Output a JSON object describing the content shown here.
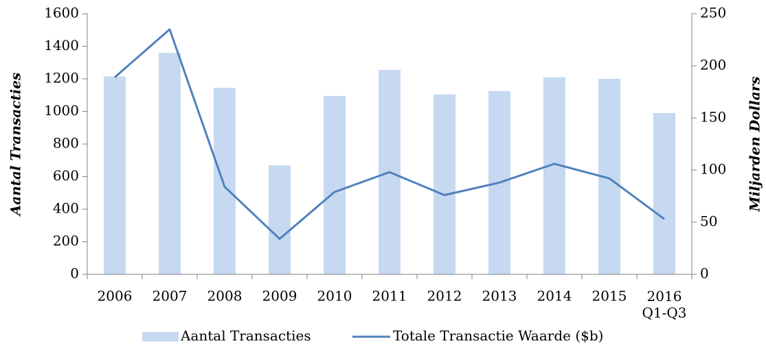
{
  "chart_data": {
    "type": "bar",
    "categories": [
      "2006",
      "2007",
      "2008",
      "2009",
      "2010",
      "2011",
      "2012",
      "2013",
      "2014",
      "2015",
      "2016\nQ1-Q3"
    ],
    "series": [
      {
        "name": "Aantal Transacties",
        "type": "bar",
        "color": "#c6d9f1",
        "axis": "y",
        "values": [
          1215,
          1360,
          1145,
          670,
          1095,
          1255,
          1105,
          1125,
          1210,
          1200,
          990
        ]
      },
      {
        "name": "Totale Transactie Waarde ($b)",
        "type": "line",
        "color": "#4f81bd",
        "axis": "y2",
        "values": [
          189,
          235,
          84,
          34,
          79,
          98,
          76,
          88,
          106,
          92,
          53
        ]
      }
    ],
    "ylabel": "Aantal Transacties",
    "y2label": "Miljarden Dollars",
    "ylim": [
      0,
      1600
    ],
    "yticks": [
      0,
      200,
      400,
      600,
      800,
      1000,
      1200,
      1400,
      1600
    ],
    "y2lim": [
      0,
      250
    ],
    "y2ticks": [
      0,
      50,
      100,
      150,
      200,
      250
    ],
    "legend": "bottom",
    "grid": false
  }
}
